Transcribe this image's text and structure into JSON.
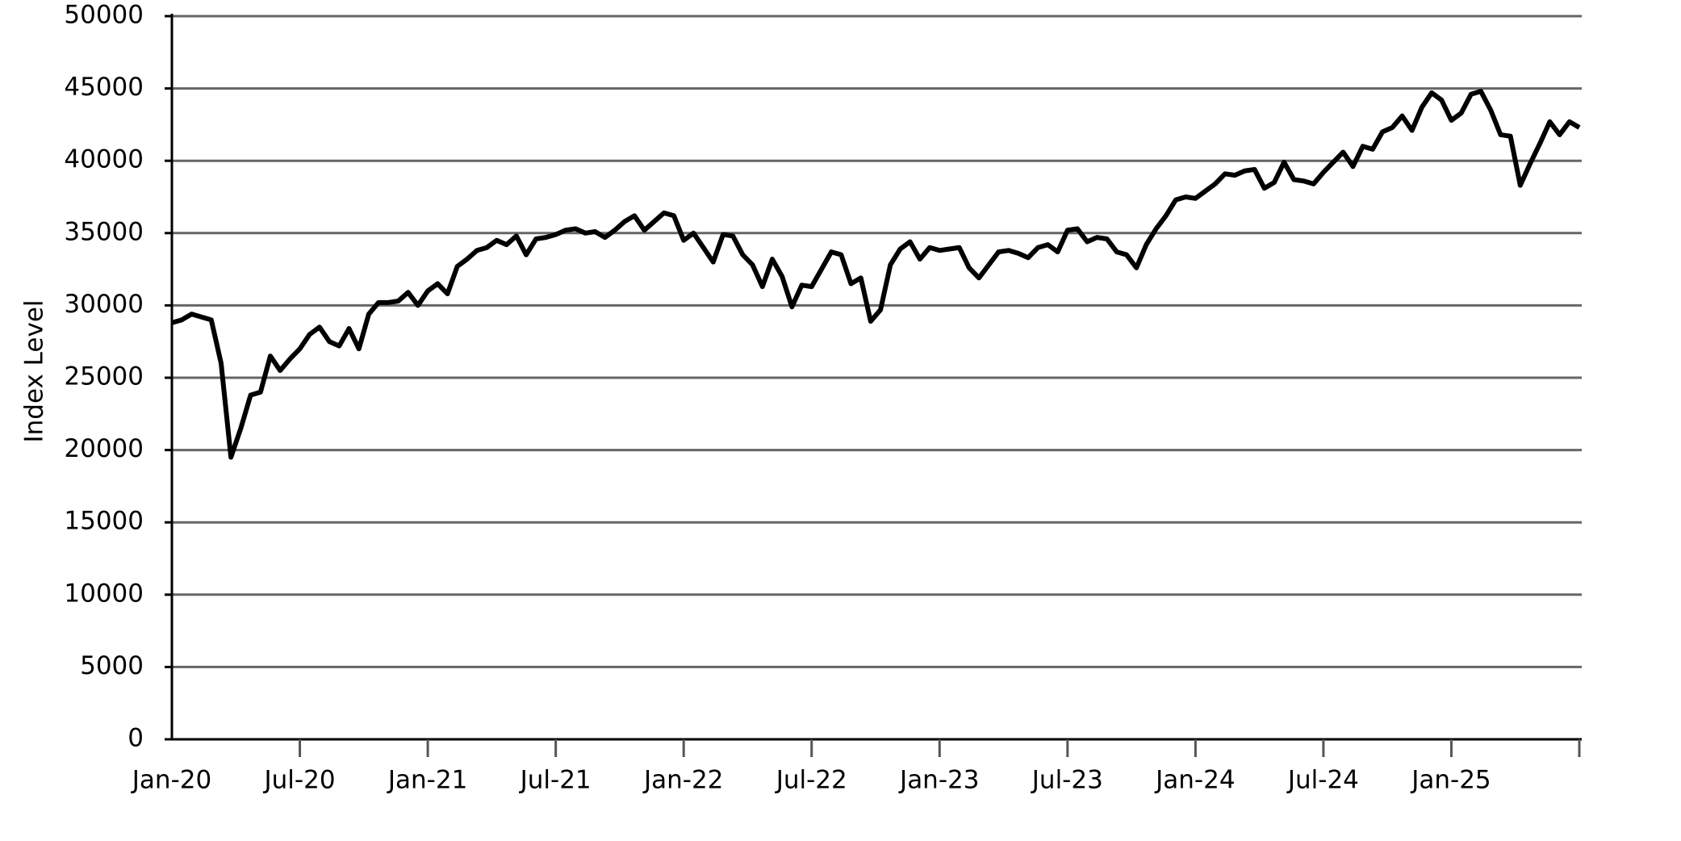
{
  "chart_data": {
    "type": "line",
    "y_label": "Index Level",
    "color": "#000000",
    "grid": true,
    "ylim": [
      0,
      50000
    ],
    "yticks": [
      0,
      5000,
      10000,
      15000,
      20000,
      25000,
      30000,
      35000,
      40000,
      45000,
      50000
    ],
    "categories": [
      "Jan-20",
      null,
      null,
      null,
      null,
      null,
      null,
      null,
      null,
      null,
      null,
      null,
      null,
      "Jul-20",
      null,
      null,
      null,
      null,
      null,
      null,
      null,
      null,
      null,
      null,
      null,
      null,
      "Jan-21",
      null,
      null,
      null,
      null,
      null,
      null,
      null,
      null,
      null,
      null,
      null,
      null,
      "Jul-21",
      null,
      null,
      null,
      null,
      null,
      null,
      null,
      null,
      null,
      null,
      null,
      null,
      "Jan-22",
      null,
      null,
      null,
      null,
      null,
      null,
      null,
      null,
      null,
      null,
      null,
      null,
      "Jul-22",
      null,
      null,
      null,
      null,
      null,
      null,
      null,
      null,
      null,
      null,
      null,
      null,
      "Jan-23",
      null,
      null,
      null,
      null,
      null,
      null,
      null,
      null,
      null,
      null,
      null,
      null,
      "Jul-23",
      null,
      null,
      null,
      null,
      null,
      null,
      null,
      null,
      null,
      null,
      null,
      null,
      "Jan-24",
      null,
      null,
      null,
      null,
      null,
      null,
      null,
      null,
      null,
      null,
      null,
      null,
      "Jul-24",
      null,
      null,
      null,
      null,
      null,
      null,
      null,
      null,
      null,
      null,
      null,
      null,
      "Jan-25",
      null,
      null,
      null,
      null,
      null,
      null,
      null,
      null,
      null,
      null,
      null,
      null,
      null
    ],
    "values": [
      28800,
      29000,
      29400,
      29200,
      29000,
      26000,
      19500,
      21500,
      23800,
      24000,
      26500,
      25500,
      26300,
      27000,
      28000,
      28500,
      27500,
      27200,
      28400,
      27000,
      29400,
      30200,
      30200,
      30300,
      30900,
      30000,
      31000,
      31500,
      30800,
      32700,
      33200,
      33800,
      34000,
      34500,
      34200,
      34800,
      33500,
      34600,
      34700,
      34900,
      35200,
      35300,
      35000,
      35100,
      34700,
      35200,
      35800,
      36200,
      35200,
      35800,
      36400,
      36200,
      34500,
      35000,
      34000,
      33000,
      34900,
      34800,
      33500,
      32800,
      31300,
      33200,
      32000,
      29900,
      31400,
      31300,
      32500,
      33700,
      33500,
      31500,
      31900,
      28900,
      29700,
      32800,
      33900,
      34400,
      33200,
      34000,
      33800,
      33900,
      34000,
      32600,
      31900,
      32800,
      33700,
      33800,
      33600,
      33300,
      34000,
      34200,
      33700,
      35200,
      35300,
      34400,
      34700,
      34600,
      33700,
      33500,
      32600,
      34200,
      35300,
      36200,
      37300,
      37500,
      37400,
      37900,
      38400,
      39100,
      39000,
      39300,
      39400,
      38100,
      38500,
      39900,
      38700,
      38600,
      38400,
      39200,
      39900,
      40600,
      39600,
      41000,
      40800,
      42000,
      42300,
      43100,
      42100,
      43700,
      44700,
      44200,
      42800,
      43300,
      44600,
      44800,
      43500,
      41800,
      41700,
      38300,
      39800,
      41200,
      42700,
      41800,
      42700,
      42300
    ]
  }
}
